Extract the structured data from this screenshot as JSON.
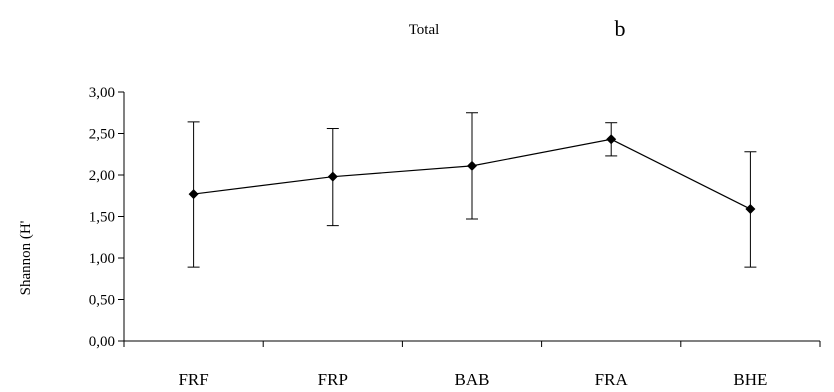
{
  "chart_data": {
    "type": "line",
    "title": "Total",
    "panel_label": "b",
    "ylabel": "Shannon (H'",
    "xlabel": "",
    "categories": [
      "FRF",
      "FRP",
      "BAB",
      "FRA",
      "BHE"
    ],
    "series": [
      {
        "values": [
          1.77,
          1.98,
          2.11,
          2.43,
          1.59
        ],
        "error_low": [
          0.89,
          1.39,
          1.47,
          2.23,
          0.89
        ],
        "error_high": [
          2.64,
          2.56,
          2.75,
          2.63,
          2.28
        ],
        "color": "#000000",
        "marker": "diamond"
      }
    ],
    "ylim": [
      0,
      3
    ],
    "yticks": [
      0,
      0.5,
      1,
      1.5,
      2,
      2.5,
      3
    ],
    "ytick_labels": [
      "0,00",
      "0,50",
      "1,00",
      "1,50",
      "2,00",
      "2,50",
      "3,00"
    ],
    "grid": false,
    "legend": "none"
  }
}
